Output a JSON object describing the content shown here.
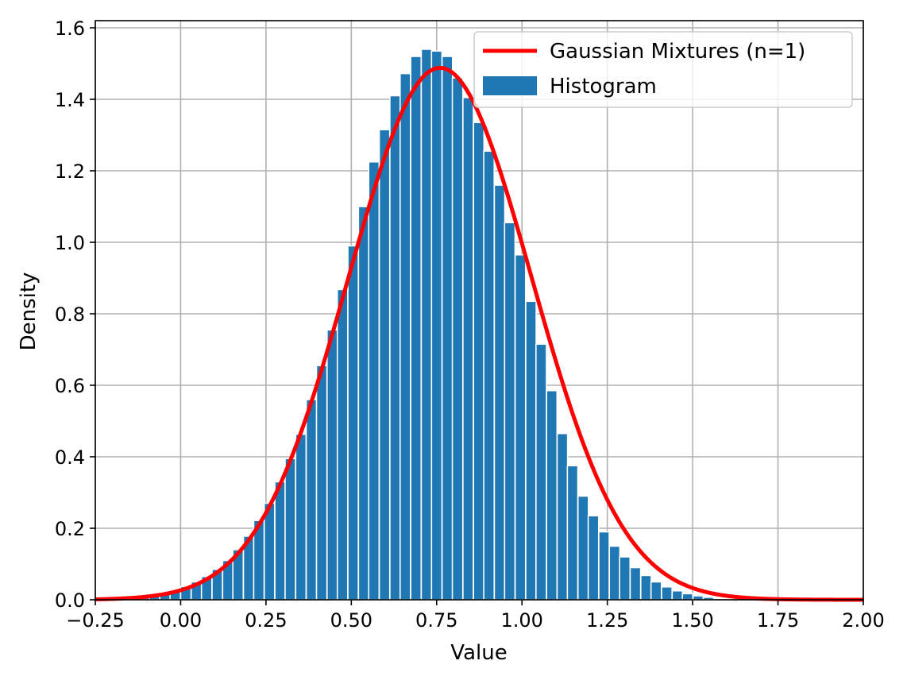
{
  "chart_data": {
    "type": "bar",
    "title": "",
    "xlabel": "Value",
    "ylabel": "Density",
    "xlim": [
      -0.25,
      2.0
    ],
    "ylim": [
      0.0,
      1.62
    ],
    "xticks": [
      -0.25,
      0.0,
      0.25,
      0.5,
      0.75,
      1.0,
      1.25,
      1.5,
      1.75,
      2.0
    ],
    "xtick_labels": [
      "−0.25",
      "0.00",
      "0.25",
      "0.50",
      "0.75",
      "1.00",
      "1.25",
      "1.50",
      "1.75",
      "2.00"
    ],
    "yticks": [
      0.0,
      0.2,
      0.4,
      0.6,
      0.8,
      1.0,
      1.2,
      1.4,
      1.6
    ],
    "ytick_labels": [
      "0.0",
      "0.2",
      "0.4",
      "0.6",
      "0.8",
      "1.0",
      "1.2",
      "1.4",
      "1.6"
    ],
    "grid": true,
    "legend_position": "top-right",
    "histogram": {
      "name": "Histogram",
      "color": "#1f77b4",
      "bin_width": 0.0306,
      "bin_starts": [
        -0.184,
        -0.153,
        -0.123,
        -0.092,
        -0.061,
        -0.031,
        0.0,
        0.031,
        0.061,
        0.092,
        0.123,
        0.153,
        0.184,
        0.214,
        0.245,
        0.276,
        0.306,
        0.337,
        0.368,
        0.398,
        0.429,
        0.459,
        0.49,
        0.521,
        0.551,
        0.582,
        0.613,
        0.643,
        0.674,
        0.705,
        0.735,
        0.766,
        0.796,
        0.827,
        0.858,
        0.888,
        0.919,
        0.949,
        0.98,
        1.011,
        1.041,
        1.072,
        1.103,
        1.133,
        1.164,
        1.194,
        1.225,
        1.256,
        1.286,
        1.317,
        1.348,
        1.378,
        1.409,
        1.44,
        1.47,
        1.501,
        1.531,
        1.562
      ],
      "values": [
        0.002,
        0.004,
        0.007,
        0.011,
        0.018,
        0.026,
        0.037,
        0.05,
        0.065,
        0.085,
        0.11,
        0.14,
        0.178,
        0.222,
        0.27,
        0.33,
        0.395,
        0.463,
        0.56,
        0.655,
        0.755,
        0.868,
        0.99,
        1.1,
        1.225,
        1.315,
        1.41,
        1.472,
        1.52,
        1.54,
        1.535,
        1.52,
        1.46,
        1.405,
        1.335,
        1.255,
        1.16,
        1.055,
        0.965,
        0.835,
        0.715,
        0.585,
        0.465,
        0.375,
        0.29,
        0.235,
        0.19,
        0.15,
        0.12,
        0.09,
        0.068,
        0.05,
        0.036,
        0.025,
        0.017,
        0.011,
        0.007,
        0.004
      ]
    },
    "series": [
      {
        "name": "Gaussian Mixtures (n=1)",
        "type": "line",
        "color": "#ff0000",
        "mean": 0.76,
        "std": 0.268,
        "peak_density": 1.488
      }
    ]
  }
}
